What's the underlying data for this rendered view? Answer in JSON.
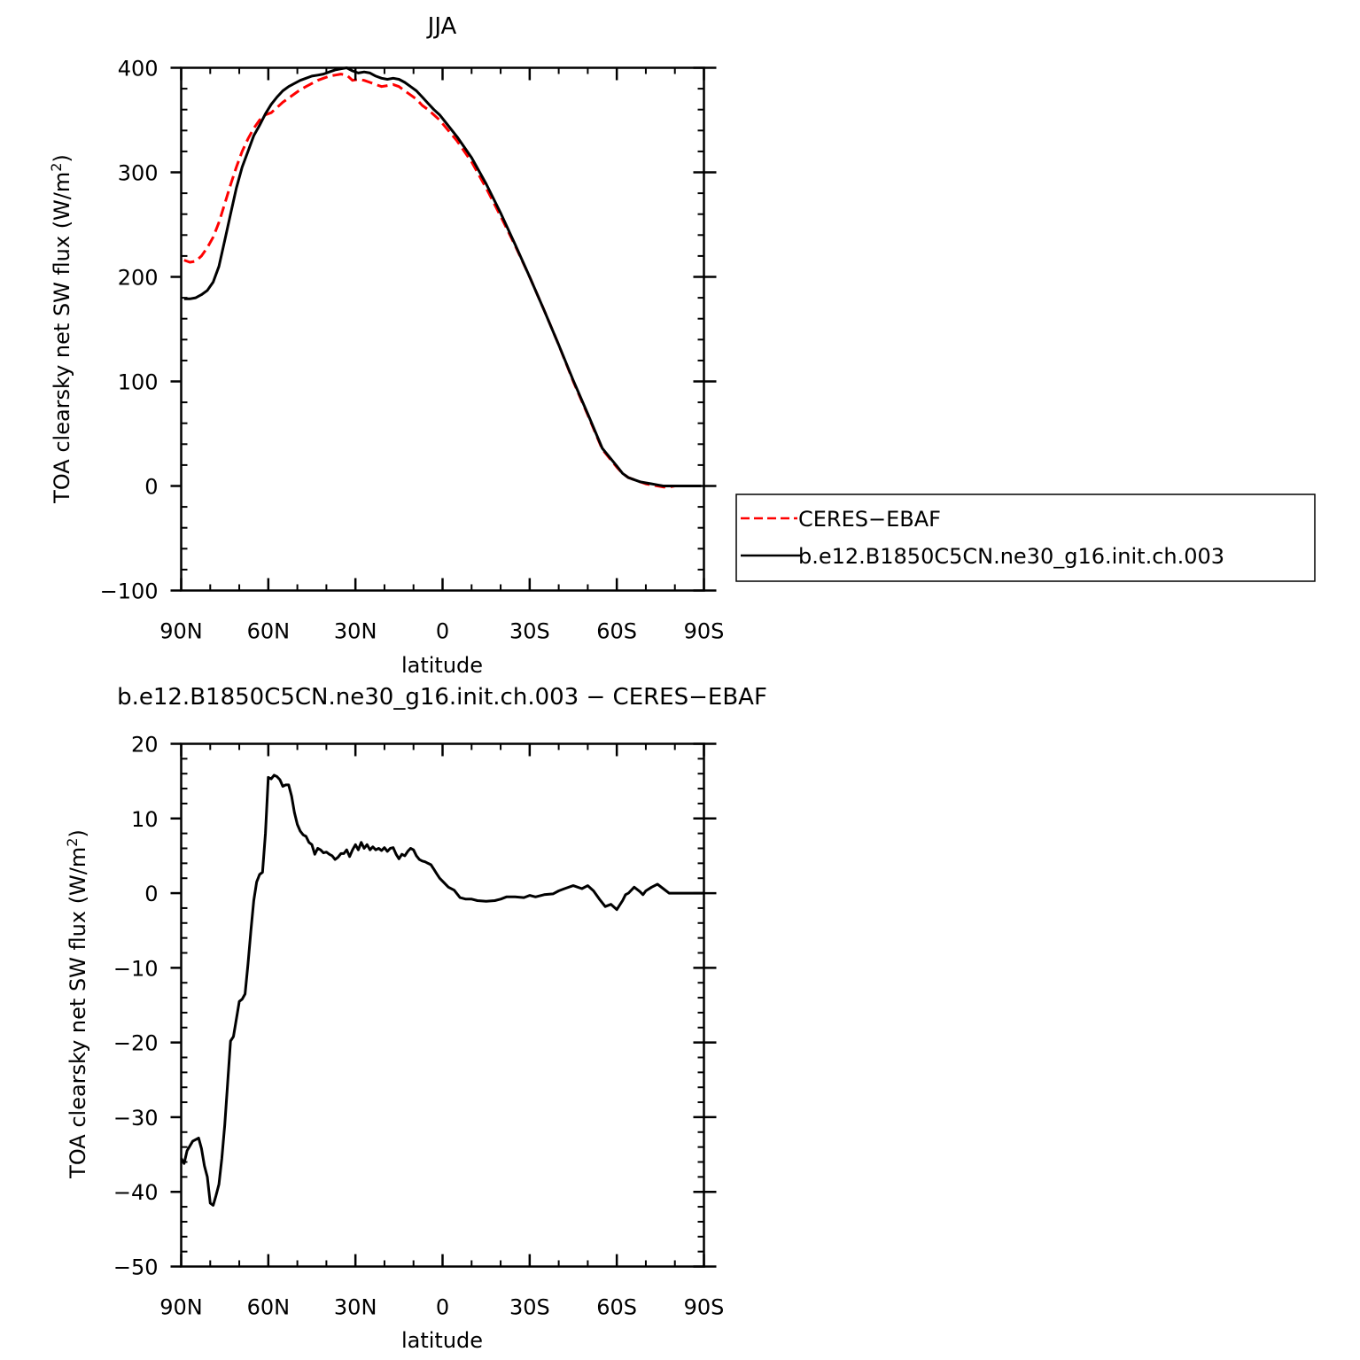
{
  "chart_data": [
    {
      "type": "line",
      "title": "JJA",
      "xlabel": "latitude",
      "ylabel": "TOA clearsky net SW flux (W/m²)",
      "ylabel_main": "TOA clearsky net SW flux (W/m",
      "ylabel_sup": "2",
      "ylabel_tail": ")",
      "xlim": [
        90,
        -90
      ],
      "ylim": [
        -100,
        400
      ],
      "x_ticks": [
        90,
        60,
        30,
        0,
        -30,
        -60,
        -90
      ],
      "x_tick_labels": [
        "90N",
        "60N",
        "30N",
        "0",
        "30S",
        "60S",
        "90S"
      ],
      "y_ticks": [
        -100,
        0,
        100,
        200,
        300,
        400
      ],
      "y_tick_labels": [
        "−100",
        "0",
        "100",
        "200",
        "300",
        "400"
      ],
      "legend_position": "right",
      "series": [
        {
          "name": "CERES−EBAF",
          "color": "#ff0000",
          "dash": "dashed",
          "x": [
            89,
            87,
            85,
            83,
            81,
            79,
            77,
            75,
            73,
            71,
            69,
            67,
            65,
            63,
            61,
            59,
            57,
            55,
            53,
            51,
            49,
            47,
            45,
            43,
            41,
            39,
            37,
            35,
            33,
            31,
            29,
            27,
            25,
            23,
            21,
            19,
            17,
            15,
            13,
            11,
            9,
            7,
            5,
            3,
            1,
            -5,
            -10,
            -15,
            -20,
            -25,
            -30,
            -35,
            -40,
            -45,
            -50,
            -55,
            -60,
            -62,
            -64,
            -66,
            -68,
            -70,
            -72,
            -74,
            -76,
            -78,
            -80,
            -82,
            -84,
            -86,
            -88,
            -89
          ],
          "y": [
            216,
            214,
            215,
            220,
            228,
            238,
            252,
            270,
            288,
            305,
            320,
            332,
            342,
            350,
            355,
            357,
            362,
            367,
            371,
            375,
            379,
            382,
            385,
            388,
            390,
            392,
            393,
            394,
            393,
            388,
            389,
            388,
            386,
            384,
            382,
            383,
            384,
            382,
            378,
            374,
            370,
            364,
            360,
            355,
            350,
            330,
            310,
            285,
            258,
            230,
            200,
            168,
            135,
            100,
            68,
            35,
            18,
            12,
            8,
            6,
            4,
            2,
            1,
            0,
            -1,
            -1,
            0,
            0,
            0,
            0,
            0,
            0
          ]
        },
        {
          "name": "b.e12.B1850C5CN.ne30_g16.init.ch.003",
          "color": "#000000",
          "dash": "solid",
          "x": [
            89,
            87,
            85,
            83,
            81,
            79,
            77,
            75,
            73,
            71,
            69,
            67,
            65,
            63,
            61,
            59,
            57,
            55,
            53,
            51,
            49,
            47,
            45,
            43,
            41,
            39,
            37,
            35,
            33,
            31,
            29,
            27,
            25,
            23,
            21,
            19,
            17,
            15,
            13,
            11,
            9,
            7,
            5,
            3,
            1,
            -5,
            -10,
            -15,
            -20,
            -25,
            -30,
            -35,
            -40,
            -45,
            -50,
            -55,
            -60,
            -62,
            -64,
            -66,
            -68,
            -70,
            -72,
            -74,
            -76,
            -78,
            -80,
            -82,
            -84,
            -86,
            -88,
            -89
          ],
          "y": [
            179,
            179,
            180,
            183,
            187,
            195,
            210,
            235,
            260,
            285,
            305,
            320,
            335,
            345,
            356,
            365,
            372,
            378,
            382,
            385,
            388,
            390,
            392,
            393,
            394,
            396,
            398,
            399,
            400,
            397,
            395,
            396,
            395,
            392,
            390,
            389,
            390,
            389,
            386,
            382,
            378,
            372,
            366,
            360,
            355,
            334,
            314,
            289,
            261,
            231,
            200,
            168,
            135,
            101,
            69,
            36,
            19,
            12,
            8,
            6,
            4,
            3,
            2,
            1,
            0,
            0,
            0,
            0,
            0,
            0,
            0,
            0
          ]
        }
      ]
    },
    {
      "type": "line",
      "title": "b.e12.B1850C5CN.ne30_g16.init.ch.003 − CERES−EBAF",
      "xlabel": "latitude",
      "ylabel": "TOA clearsky net SW flux (W/m²)",
      "ylabel_main": "TOA clearsky net SW flux (W/m",
      "ylabel_sup": "2",
      "ylabel_tail": ")",
      "xlim": [
        90,
        -90
      ],
      "ylim": [
        -50,
        20
      ],
      "x_ticks": [
        90,
        60,
        30,
        0,
        -30,
        -60,
        -90
      ],
      "x_tick_labels": [
        "90N",
        "60N",
        "30N",
        "0",
        "30S",
        "60S",
        "90S"
      ],
      "y_ticks": [
        -50,
        -40,
        -30,
        -20,
        -10,
        0,
        10,
        20
      ],
      "y_tick_labels": [
        "−50",
        "−40",
        "−30",
        "−20",
        "−10",
        "0",
        "10",
        "20"
      ],
      "series": [
        {
          "color": "#000000",
          "dash": "solid",
          "x": [
            90,
            89,
            88,
            86,
            84,
            83,
            82,
            81,
            80,
            79,
            78,
            77,
            76,
            75,
            74,
            73,
            72,
            70,
            69,
            68,
            67,
            66,
            65,
            64,
            63,
            62,
            61,
            60,
            59,
            58,
            57,
            56,
            55,
            54,
            53,
            52,
            51,
            50,
            49,
            48,
            47,
            46,
            45,
            44,
            43,
            42,
            41,
            40,
            39,
            38,
            37,
            36,
            35,
            34,
            33,
            32,
            31,
            30,
            29,
            28,
            27,
            26,
            25,
            24,
            23,
            22,
            21,
            20,
            19,
            18,
            17,
            16,
            15,
            14,
            13,
            12,
            11,
            10,
            9,
            8,
            7,
            6,
            5,
            4,
            3,
            2,
            1,
            0,
            -2,
            -4,
            -6,
            -8,
            -10,
            -12,
            -15,
            -18,
            -20,
            -22,
            -25,
            -28,
            -30,
            -32,
            -35,
            -38,
            -40,
            -42,
            -45,
            -48,
            -50,
            -52,
            -54,
            -56,
            -58,
            -60,
            -62,
            -63,
            -64,
            -66,
            -68,
            -69,
            -70,
            -72,
            -74,
            -76,
            -78,
            -80,
            -83,
            -86,
            -88,
            -90
          ],
          "y": [
            -35.5,
            -36.2,
            -34.5,
            -33.2,
            -32.8,
            -34.2,
            -36.5,
            -38,
            -41.5,
            -41.8,
            -40.5,
            -39,
            -35.5,
            -31,
            -25.5,
            -19.8,
            -19.2,
            -14.5,
            -14.2,
            -13.5,
            -9.5,
            -5,
            -1,
            1.5,
            2.5,
            2.8,
            8,
            15.5,
            15.3,
            15.8,
            15.6,
            15.2,
            14.3,
            14.5,
            14.5,
            13,
            10.8,
            9.2,
            8.3,
            7.8,
            7.6,
            6.8,
            6.5,
            5.2,
            6.0,
            5.8,
            5.4,
            5.5,
            5.2,
            5.0,
            4.5,
            4.8,
            5.3,
            5.3,
            5.8,
            4.9,
            5.8,
            6.5,
            5.8,
            6.8,
            6.0,
            6.5,
            5.8,
            6.2,
            5.8,
            6.0,
            5.7,
            6.1,
            5.6,
            6.0,
            6.1,
            5.2,
            4.6,
            5.2,
            5.0,
            5.6,
            6.0,
            5.8,
            5.0,
            4.5,
            4.3,
            4.2,
            4.0,
            3.8,
            3.2,
            2.6,
            2.0,
            1.6,
            0.8,
            0.4,
            -0.6,
            -0.8,
            -0.8,
            -1.0,
            -1.1,
            -1.0,
            -0.8,
            -0.5,
            -0.5,
            -0.6,
            -0.3,
            -0.5,
            -0.2,
            -0.1,
            0.3,
            0.6,
            1.0,
            0.6,
            1.0,
            0.3,
            -0.8,
            -1.8,
            -1.5,
            -2.2,
            -1.0,
            -0.2,
            0.0,
            0.8,
            0.2,
            -0.2,
            0.3,
            0.8,
            1.2,
            0.6,
            0.0,
            0.0,
            0.0,
            0.0,
            0.0,
            0.0
          ]
        }
      ]
    }
  ]
}
